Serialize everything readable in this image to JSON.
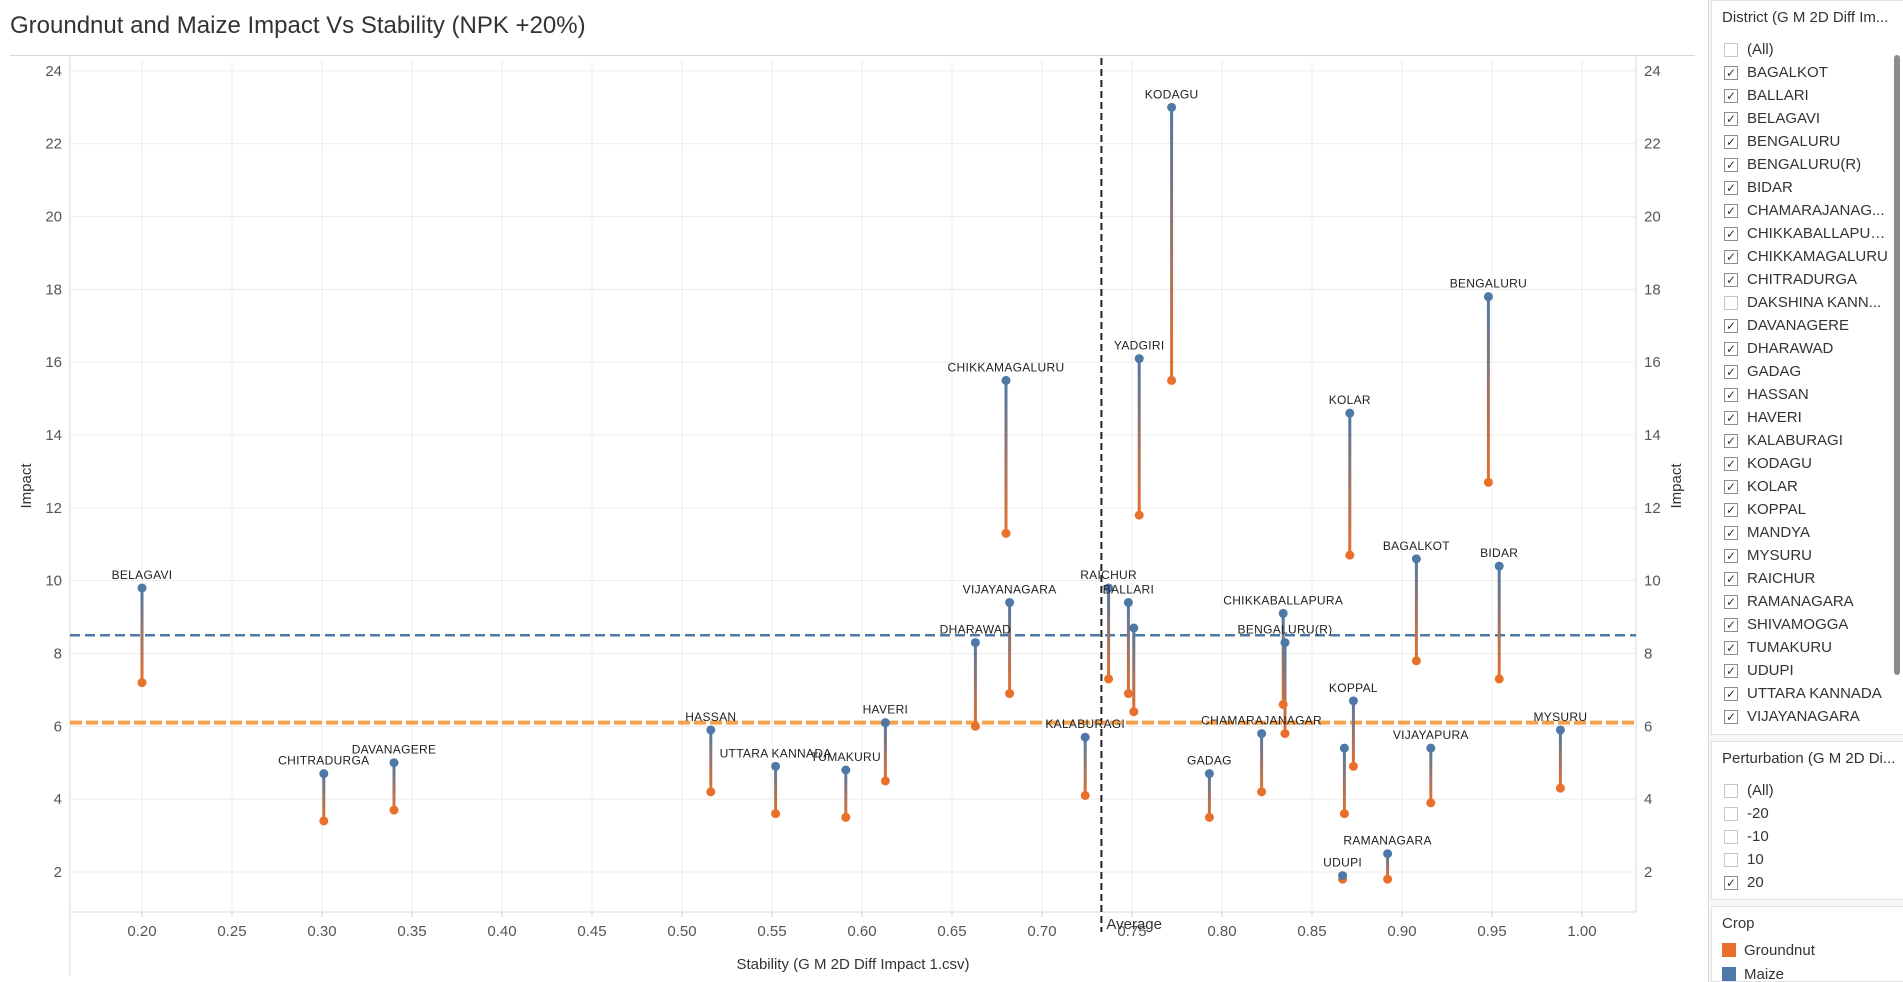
{
  "title": "Groundnut and Maize Impact Vs Stability (NPK +20%)",
  "chart_data": {
    "type": "scatter",
    "title": "Groundnut and Maize Impact Vs Stability (NPK +20%)",
    "xlabel": "Stability (G M 2D Diff Impact 1.csv)",
    "ylabel": "Impact",
    "ylabel_right": "Impact",
    "xlim": [
      0.16,
      1.03
    ],
    "ylim": [
      0.9,
      24.3
    ],
    "x_ticks": [
      0.2,
      0.25,
      0.3,
      0.35,
      0.4,
      0.45,
      0.5,
      0.55,
      0.6,
      0.65,
      0.7,
      0.75,
      0.8,
      0.85,
      0.9,
      0.95,
      1.0
    ],
    "x_tick_labels": [
      "0.20",
      "0.25",
      "0.30",
      "0.35",
      "0.40",
      "0.45",
      "0.50",
      "0.55",
      "0.60",
      "0.65",
      "0.70",
      "0.75",
      "0.80",
      "0.85",
      "0.90",
      "0.95",
      "1.00"
    ],
    "y_ticks": [
      2,
      4,
      6,
      8,
      10,
      12,
      14,
      16,
      18,
      20,
      22,
      24
    ],
    "y_tick_labels": [
      "2",
      "4",
      "6",
      "8",
      "10",
      "12",
      "14",
      "16",
      "18",
      "20",
      "22",
      "24"
    ],
    "grid": true,
    "reference_lines": [
      {
        "axis": "x",
        "value": 0.733,
        "label": "Average",
        "color": "#000000"
      },
      {
        "axis": "y",
        "value": 8.5,
        "color": "#4e79a7"
      },
      {
        "axis": "y",
        "value": 6.1,
        "color": "#f28e2b"
      }
    ],
    "series": [
      {
        "name": "Groundnut",
        "color": "#e15759"
      },
      {
        "name": "Maize",
        "color": "#4e79a7"
      }
    ],
    "points": [
      {
        "district": "BELAGAVI",
        "x": 0.2,
        "maize": 9.8,
        "groundnut": 7.2
      },
      {
        "district": "CHITRADURGA",
        "x": 0.301,
        "maize": 4.7,
        "groundnut": 3.4
      },
      {
        "district": "DAVANAGERE",
        "x": 0.34,
        "maize": 5.0,
        "groundnut": 3.7
      },
      {
        "district": "HASSAN",
        "x": 0.516,
        "maize": 5.9,
        "groundnut": 4.2
      },
      {
        "district": "UTTARA KANNADA",
        "x": 0.552,
        "maize": 4.9,
        "groundnut": 3.6
      },
      {
        "district": "TUMAKURU",
        "x": 0.591,
        "maize": 4.8,
        "groundnut": 3.5
      },
      {
        "district": "HAVERI",
        "x": 0.613,
        "maize": 6.1,
        "groundnut": 4.5
      },
      {
        "district": "DHARAWAD",
        "x": 0.663,
        "maize": 8.3,
        "groundnut": 6.0
      },
      {
        "district": "CHIKKAMAGALURU",
        "x": 0.68,
        "maize": 15.5,
        "groundnut": 11.3
      },
      {
        "district": "VIJAYANAGARA",
        "x": 0.682,
        "maize": 9.4,
        "groundnut": 6.9
      },
      {
        "district": "KALABURAGI",
        "x": 0.724,
        "maize": 5.7,
        "groundnut": 4.1
      },
      {
        "district": "RAICHUR",
        "x": 0.737,
        "maize": 9.8,
        "groundnut": 7.3
      },
      {
        "district": "BALLARI",
        "x": 0.748,
        "maize": 9.4,
        "groundnut": 6.9
      },
      {
        "district": "",
        "x": 0.751,
        "maize": 8.7,
        "groundnut": 6.4
      },
      {
        "district": "YADGIRI",
        "x": 0.754,
        "maize": 16.1,
        "groundnut": 11.8
      },
      {
        "district": "KODAGU",
        "x": 0.772,
        "maize": 23.0,
        "groundnut": 15.5
      },
      {
        "district": "GADAG",
        "x": 0.793,
        "maize": 4.7,
        "groundnut": 3.5
      },
      {
        "district": "CHAMARAJANAGAR",
        "x": 0.822,
        "maize": 5.8,
        "groundnut": 4.2
      },
      {
        "district": "CHIKKABALLAPURA",
        "x": 0.834,
        "maize": 9.1,
        "groundnut": 6.6
      },
      {
        "district": "BENGALURU(R)",
        "x": 0.835,
        "maize": 8.3,
        "groundnut": 5.8
      },
      {
        "district": "UDUPI",
        "x": 0.867,
        "maize": 1.9,
        "groundnut": 1.8
      },
      {
        "district": "",
        "x": 0.868,
        "maize": 5.4,
        "groundnut": 3.6
      },
      {
        "district": "KOLAR",
        "x": 0.871,
        "maize": 14.6,
        "groundnut": 10.7
      },
      {
        "district": "KOPPAL",
        "x": 0.873,
        "maize": 6.7,
        "groundnut": 4.9
      },
      {
        "district": "RAMANAGARA",
        "x": 0.892,
        "maize": 2.5,
        "groundnut": 1.8
      },
      {
        "district": "BAGALKOT",
        "x": 0.908,
        "maize": 10.6,
        "groundnut": 7.8
      },
      {
        "district": "VIJAYAPURA",
        "x": 0.916,
        "maize": 5.4,
        "groundnut": 3.9
      },
      {
        "district": "BENGALURU",
        "x": 0.948,
        "maize": 17.8,
        "groundnut": 12.7
      },
      {
        "district": "BIDAR",
        "x": 0.954,
        "maize": 10.4,
        "groundnut": 7.3
      },
      {
        "district": "MYSURU",
        "x": 0.988,
        "maize": 5.9,
        "groundnut": 4.3
      }
    ]
  },
  "filters": {
    "district": {
      "title": "District (G M 2D Diff Im...",
      "items": [
        {
          "label": "(All)",
          "checked": false
        },
        {
          "label": "BAGALKOT",
          "checked": true
        },
        {
          "label": "BALLARI",
          "checked": true
        },
        {
          "label": "BELAGAVI",
          "checked": true
        },
        {
          "label": "BENGALURU",
          "checked": true
        },
        {
          "label": "BENGALURU(R)",
          "checked": true
        },
        {
          "label": "BIDAR",
          "checked": true
        },
        {
          "label": "CHAMARAJANAG...",
          "checked": true
        },
        {
          "label": "CHIKKABALLAPURA",
          "checked": true
        },
        {
          "label": "CHIKKAMAGALURU",
          "checked": true
        },
        {
          "label": "CHITRADURGA",
          "checked": true
        },
        {
          "label": "DAKSHINA KANN...",
          "checked": false
        },
        {
          "label": "DAVANAGERE",
          "checked": true
        },
        {
          "label": "DHARAWAD",
          "checked": true
        },
        {
          "label": "GADAG",
          "checked": true
        },
        {
          "label": "HASSAN",
          "checked": true
        },
        {
          "label": "HAVERI",
          "checked": true
        },
        {
          "label": "KALABURAGI",
          "checked": true
        },
        {
          "label": "KODAGU",
          "checked": true
        },
        {
          "label": "KOLAR",
          "checked": true
        },
        {
          "label": "KOPPAL",
          "checked": true
        },
        {
          "label": "MANDYA",
          "checked": true
        },
        {
          "label": "MYSURU",
          "checked": true
        },
        {
          "label": "RAICHUR",
          "checked": true
        },
        {
          "label": "RAMANAGARA",
          "checked": true
        },
        {
          "label": "SHIVAMOGGA",
          "checked": true
        },
        {
          "label": "TUMAKURU",
          "checked": true
        },
        {
          "label": "UDUPI",
          "checked": true
        },
        {
          "label": "UTTARA KANNADA",
          "checked": true
        },
        {
          "label": "VIJAYANAGARA",
          "checked": true
        }
      ]
    },
    "perturbation": {
      "title": "Perturbation (G M 2D Di...",
      "items": [
        {
          "label": "(All)",
          "checked": false
        },
        {
          "label": "-20",
          "checked": false
        },
        {
          "label": "-10",
          "checked": false
        },
        {
          "label": "10",
          "checked": false
        },
        {
          "label": "20",
          "checked": true
        }
      ]
    }
  },
  "legend": {
    "title": "Crop",
    "items": [
      {
        "label": "Groundnut",
        "color": "#e8702a"
      },
      {
        "label": "Maize",
        "color": "#4e79a7"
      }
    ]
  },
  "colors": {
    "maize": "#4e79a7",
    "groundnut": "#e8702a",
    "maize_ref": "#4e79a7",
    "groundnut_ref": "#f5a04a",
    "average": "#222222",
    "grid": "#ececec"
  }
}
